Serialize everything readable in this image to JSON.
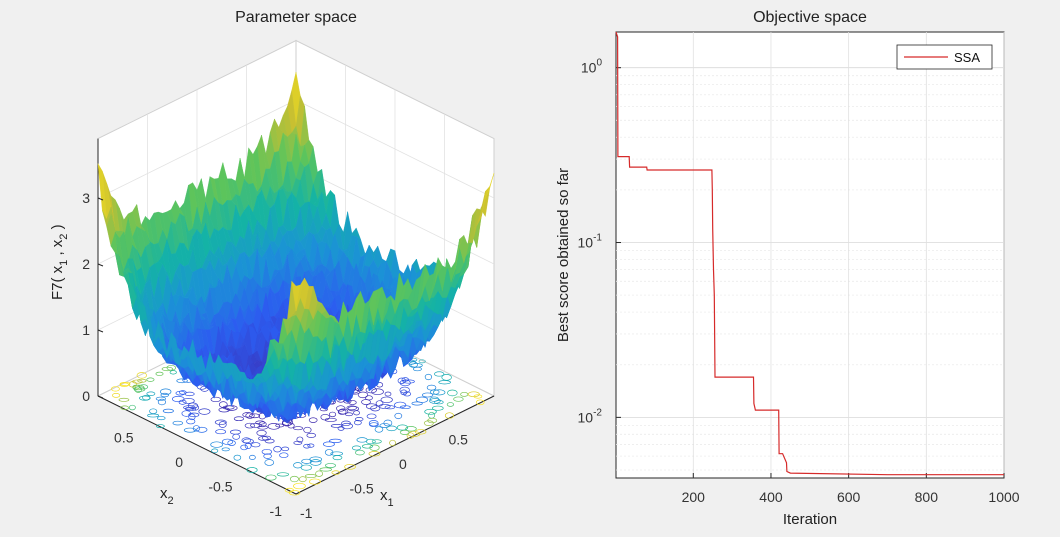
{
  "chart_data": [
    {
      "type": "surface",
      "title": "Parameter space",
      "xlabel": "x",
      "xlabel_sub": "1",
      "ylabel": "x",
      "ylabel_sub": "2",
      "zlabel": "F7( x",
      "zlabel_sub1": "1",
      "zlabel_mid": " , x",
      "zlabel_sub2": "2",
      "zlabel_end": " )",
      "xlim": [
        -1,
        1
      ],
      "ylim": [
        -1,
        1
      ],
      "zlim": [
        0,
        3.5
      ],
      "x_ticks": [
        "-1",
        "-0.5",
        "0",
        "0.5"
      ],
      "y_ticks": [
        "-1",
        "-0.5",
        "0",
        "0.5"
      ],
      "z_ticks": [
        "0",
        "1",
        "2",
        "3"
      ],
      "colormap": [
        "#3e26a8",
        "#2c5cf0",
        "#1b92d6",
        "#14b3a5",
        "#5cc45c",
        "#c6bf32",
        "#f9e21f"
      ],
      "contour_projection": true
    },
    {
      "type": "line",
      "title": "Objective space",
      "xlabel": "Iteration",
      "ylabel": "Best score obtained so far",
      "y_scale": "log",
      "xlim": [
        1,
        1000
      ],
      "ylim": [
        0.0045,
        1.6
      ],
      "x_ticks": [
        "200",
        "400",
        "600",
        "800",
        "1000"
      ],
      "y_ticks": [
        {
          "base": "10",
          "exp": "0",
          "value": 1
        },
        {
          "base": "10",
          "exp": "-1",
          "value": 0.1
        },
        {
          "base": "10",
          "exp": "-2",
          "value": 0.01
        }
      ],
      "grid": true,
      "legend": "top-right",
      "series": [
        {
          "name": "SSA",
          "color": "#d62a2a",
          "x": [
            1,
            5,
            6,
            35,
            36,
            80,
            81,
            248,
            249,
            250,
            252,
            254,
            256,
            258,
            355,
            356,
            360,
            420,
            421,
            430,
            440,
            441,
            450,
            700,
            1000
          ],
          "y": [
            1.6,
            1.5,
            0.31,
            0.31,
            0.27,
            0.27,
            0.26,
            0.26,
            0.2,
            0.12,
            0.07,
            0.05,
            0.017,
            0.017,
            0.017,
            0.012,
            0.011,
            0.011,
            0.0062,
            0.0062,
            0.0055,
            0.0049,
            0.0048,
            0.0047,
            0.0047
          ]
        }
      ]
    }
  ]
}
